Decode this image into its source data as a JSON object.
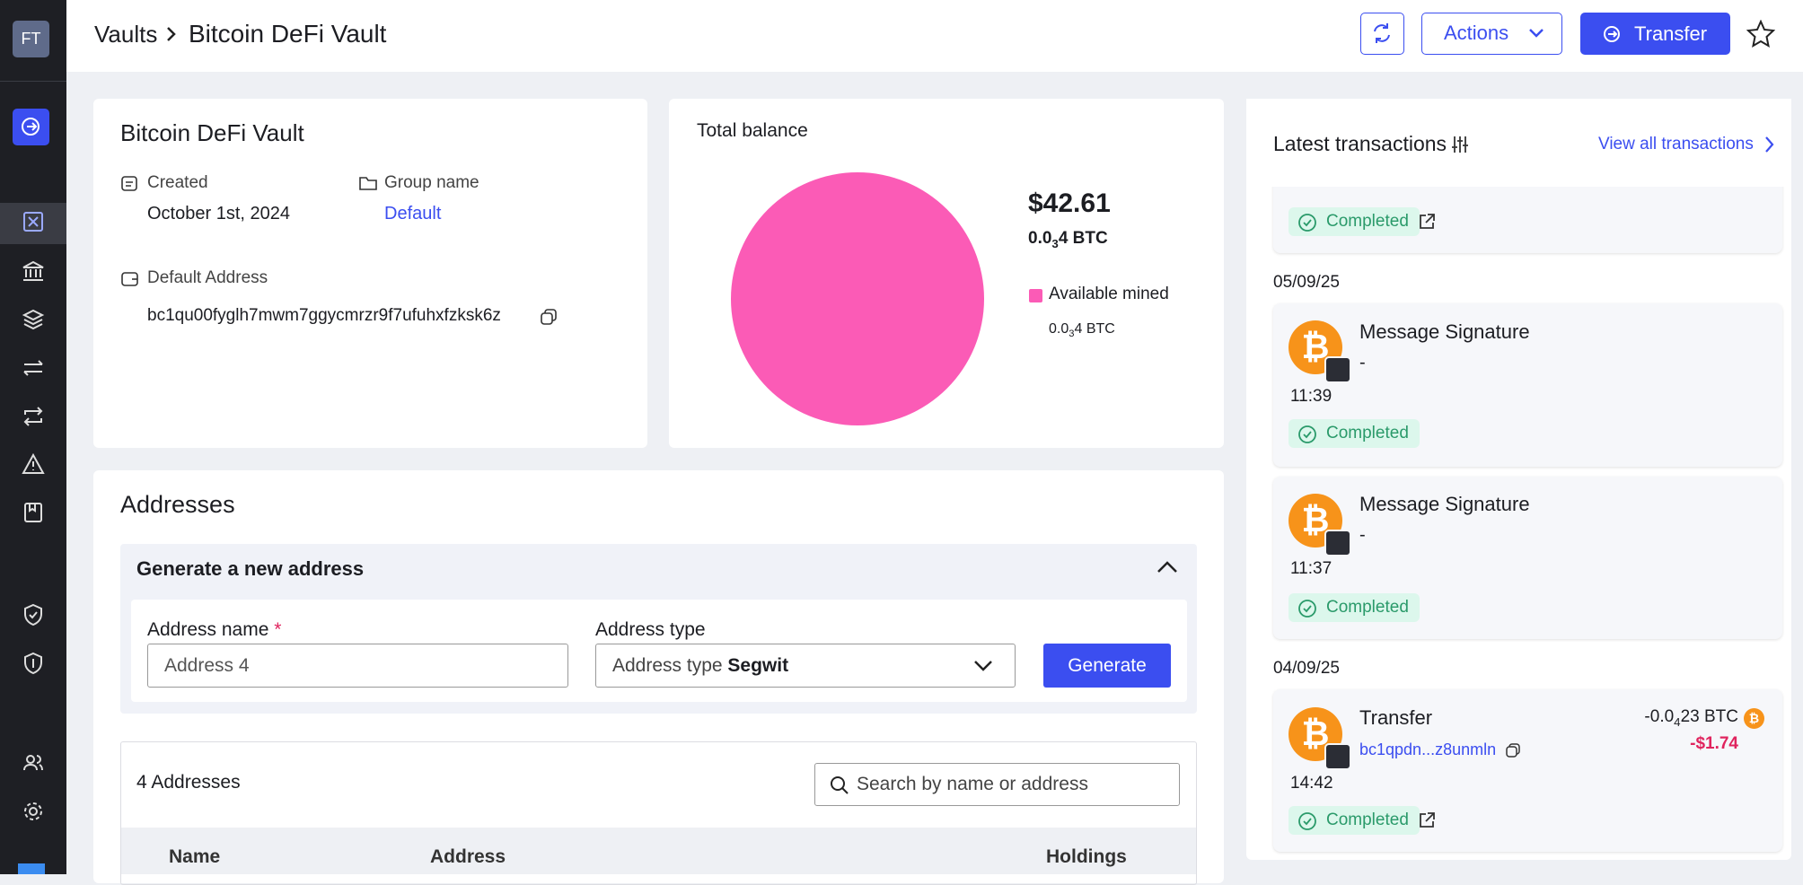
{
  "sidebar": {
    "avatar": "FT"
  },
  "header": {
    "breadcrumb": [
      "Vaults",
      "Bitcoin DeFi Vault"
    ],
    "actions": "Actions",
    "transfer": "Transfer"
  },
  "vault": {
    "title": "Bitcoin DeFi Vault",
    "created_label": "Created",
    "created": "October 1st, 2024",
    "group_label": "Group name",
    "group": "Default",
    "address_label": "Default Address",
    "address": "bc1qu00fyglh7mwm7ggycmrzr9f7ufuhxfzksk6z"
  },
  "balance": {
    "title": "Total balance",
    "usd": "$42.61",
    "btc": {
      "lead": "0.0",
      "sub": "3",
      "tail": "4 BTC"
    },
    "legend": {
      "label": "Available mined",
      "btc": {
        "lead": "0.0",
        "sub": "3",
        "tail": "4 BTC"
      }
    }
  },
  "addresses": {
    "title": "Addresses",
    "generate": {
      "title": "Generate a new address",
      "name_label": "Address name",
      "required": "*",
      "name_value": "Address 4",
      "type_label": "Address type",
      "type_prefix": "Address type",
      "type_value": "Segwit",
      "button": "Generate"
    },
    "count": "4 Addresses",
    "search": "Search by name or address",
    "columns": [
      "Name",
      "Address",
      "Holdings"
    ]
  },
  "transactions": {
    "title": "Latest transactions",
    "view_all": "View all transactions",
    "groups": [
      {
        "items": [
          {
            "status": "Completed"
          }
        ]
      },
      {
        "date": "05/09/25",
        "items": [
          {
            "title": "Message Signature",
            "detail": "-",
            "time": "11:39",
            "status": "Completed"
          },
          {
            "title": "Message Signature",
            "detail": "-",
            "time": "11:37",
            "status": "Completed"
          }
        ]
      },
      {
        "date": "04/09/25",
        "items": [
          {
            "title": "Transfer",
            "address": "bc1qpdn...z8unmln",
            "time": "14:42",
            "status": "Completed",
            "amount": {
              "lead": "-0.0",
              "sub": "4",
              "tail": "23 BTC"
            },
            "usd": "-$1.74"
          }
        ]
      }
    ]
  }
}
